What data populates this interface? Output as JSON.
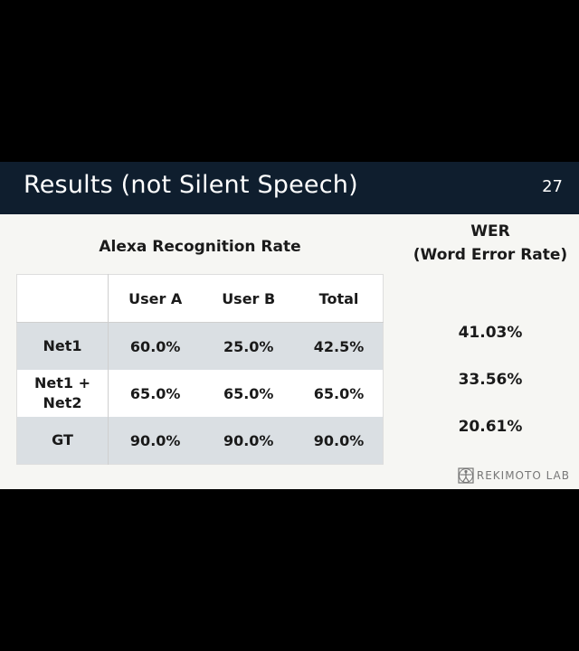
{
  "slide": {
    "title": "Results (not Silent Speech)",
    "page_number": "27"
  },
  "table": {
    "heading": "Alexa Recognition Rate",
    "columns": [
      "",
      "User A",
      "User B",
      "Total"
    ],
    "rows": [
      {
        "label": "Net1",
        "values": [
          "60.0%",
          "25.0%",
          "42.5%"
        ]
      },
      {
        "label_line1": "Net1 +",
        "label_line2": "Net2",
        "values": [
          "65.0%",
          "65.0%",
          "65.0%"
        ]
      },
      {
        "label": "GT",
        "values": [
          "90.0%",
          "90.0%",
          "90.0%"
        ]
      }
    ]
  },
  "wer": {
    "heading_line1": "WER",
    "heading_line2": "(Word Error Rate)",
    "values": [
      "41.03%",
      "33.56%",
      "20.61%"
    ]
  },
  "logo": {
    "text": "REKIMOTO LAB",
    "icon": "vitruvian-man-icon"
  },
  "colors": {
    "title_bar": "#0f1e2e",
    "slide_bg": "#f6f6f3",
    "row_shade": "#dadfe3"
  }
}
